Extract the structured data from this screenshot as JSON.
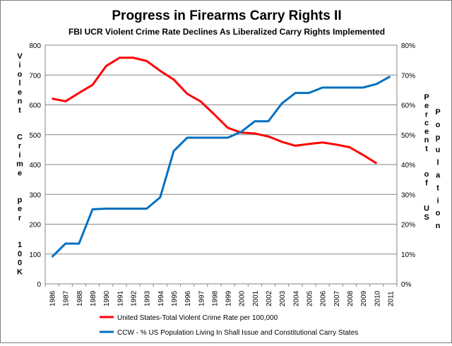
{
  "chart_data": {
    "type": "line",
    "title": "Progress in Firearms Carry Rights II",
    "subtitle": "FBI UCR Violent Crime Rate Declines As Liberalized Carry Rights Implemented",
    "xlabel": "",
    "ylabel": "Violent Crime per 100K",
    "y2label": "Percent of US Population",
    "categories": [
      "1986",
      "1987",
      "1988",
      "1989",
      "1990",
      "1991",
      "1992",
      "1993",
      "1994",
      "1995",
      "1996",
      "1997",
      "1998",
      "1999",
      "2000",
      "2001",
      "2002",
      "2003",
      "2004",
      "2005",
      "2006",
      "2007",
      "2008",
      "2009",
      "2010",
      "2011"
    ],
    "ylim": [
      0,
      800
    ],
    "yticks": [
      "0",
      "100",
      "200",
      "300",
      "400",
      "500",
      "600",
      "700",
      "800"
    ],
    "y2lim": [
      0,
      80
    ],
    "y2ticks": [
      "0%",
      "10%",
      "20%",
      "30%",
      "40%",
      "50%",
      "60%",
      "70%",
      "80%"
    ],
    "grid": true,
    "legend_position": "bottom",
    "series": [
      {
        "name": "United States-Total Violent Crime Rate per 100,000",
        "axis": "left",
        "color": "#ff0000",
        "values": [
          621,
          612,
          640,
          667,
          730,
          758,
          758,
          747,
          714,
          685,
          637,
          611,
          568,
          523,
          507,
          504,
          494,
          476,
          463,
          469,
          474,
          467,
          458,
          432,
          404,
          null
        ]
      },
      {
        "name": "CCW - % US Population Living In Shall Issue and Constitutional Carry States",
        "axis": "right",
        "color": "#0070c0",
        "values": [
          9,
          13.5,
          13.5,
          25,
          25.2,
          25.2,
          25.2,
          25.2,
          29,
          44.5,
          49,
          49,
          49,
          49,
          51,
          54.5,
          54.5,
          60.5,
          64,
          64,
          65.8,
          65.8,
          65.8,
          65.8,
          67,
          69.5
        ]
      }
    ]
  }
}
